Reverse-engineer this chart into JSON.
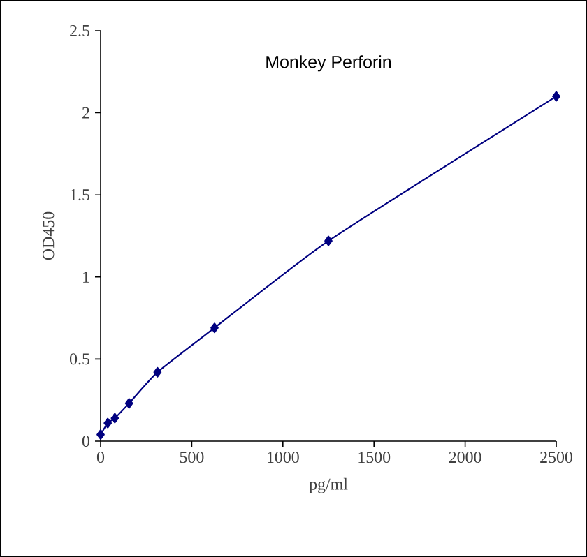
{
  "chart_data": {
    "type": "line",
    "title": "Monkey    Perforin",
    "xlabel": "pg/ml",
    "ylabel": "OD450",
    "x": [
      0,
      39,
      78,
      156,
      312,
      625,
      1250,
      2500
    ],
    "series": [
      {
        "color": "#000080",
        "values": [
          0.04,
          0.11,
          0.14,
          0.23,
          0.42,
          0.69,
          1.22,
          2.1
        ]
      }
    ],
    "xlim": [
      0,
      2500
    ],
    "ylim": [
      0,
      2.5
    ],
    "xticks": [
      0,
      500,
      1000,
      1500,
      2000,
      2500
    ],
    "yticks": [
      0,
      {
        "value": 0.5,
        "label": "0.5"
      },
      1,
      {
        "value": 1.5,
        "label": "1.5"
      },
      2,
      {
        "value": 2.5,
        "label": "2.5"
      }
    ],
    "marker": "diamond",
    "line_style": "solid",
    "grid": false,
    "legend": false
  }
}
